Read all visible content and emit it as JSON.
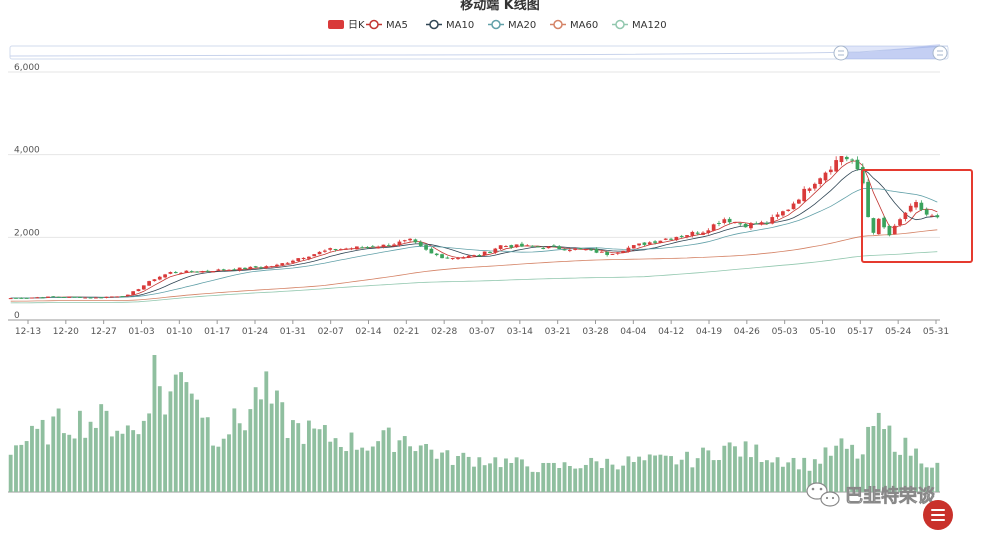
{
  "chart_data": {
    "type": "candlestick",
    "title": "移动端 K线图",
    "legend": [
      {
        "name": "日K",
        "color": "#d93a3a",
        "kind": "box"
      },
      {
        "name": "MA5",
        "color": "#c23531",
        "kind": "line"
      },
      {
        "name": "MA10",
        "color": "#2f4554",
        "kind": "line"
      },
      {
        "name": "MA20",
        "color": "#61a0a8",
        "kind": "line"
      },
      {
        "name": "MA60",
        "color": "#d48265",
        "kind": "line"
      },
      {
        "name": "MA120",
        "color": "#91c7ae",
        "kind": "line"
      }
    ],
    "y_ticks": [
      "6,000",
      "4,000",
      "2,000",
      "0"
    ],
    "ylim": [
      0,
      6000
    ],
    "x_ticks": [
      "12-13",
      "12-20",
      "12-27",
      "01-03",
      "01-10",
      "01-17",
      "01-24",
      "01-31",
      "02-07",
      "02-14",
      "02-21",
      "02-28",
      "03-07",
      "03-14",
      "03-21",
      "03-28",
      "04-04",
      "04-12",
      "04-19",
      "04-26",
      "05-03",
      "05-10",
      "05-17",
      "05-24",
      "05-31"
    ],
    "close_keyframes": [
      [
        0,
        530
      ],
      [
        8,
        560
      ],
      [
        16,
        540
      ],
      [
        22,
        600
      ],
      [
        27,
        1000
      ],
      [
        30,
        1150
      ],
      [
        36,
        1180
      ],
      [
        44,
        1250
      ],
      [
        50,
        1320
      ],
      [
        54,
        1500
      ],
      [
        60,
        1700
      ],
      [
        70,
        1800
      ],
      [
        75,
        1920
      ],
      [
        79,
        1600
      ],
      [
        82,
        1500
      ],
      [
        88,
        1560
      ],
      [
        92,
        1800
      ],
      [
        100,
        1760
      ],
      [
        108,
        1700
      ],
      [
        112,
        1600
      ],
      [
        118,
        1820
      ],
      [
        124,
        2000
      ],
      [
        130,
        2150
      ],
      [
        134,
        2450
      ],
      [
        138,
        2300
      ],
      [
        142,
        2350
      ],
      [
        146,
        2700
      ],
      [
        150,
        3250
      ],
      [
        153,
        3600
      ],
      [
        155,
        3850
      ],
      [
        156,
        3980
      ],
      [
        158,
        3850
      ],
      [
        160,
        3300
      ],
      [
        161,
        2500
      ],
      [
        162,
        2150
      ],
      [
        163,
        2400
      ],
      [
        165,
        2050
      ],
      [
        168,
        2600
      ],
      [
        170,
        2800
      ],
      [
        172,
        2550
      ],
      [
        174,
        2450
      ]
    ],
    "n_bars": 175,
    "volume_keyframes": [
      [
        0,
        260
      ],
      [
        5,
        330
      ],
      [
        10,
        410
      ],
      [
        18,
        420
      ],
      [
        24,
        340
      ],
      [
        27,
        720
      ],
      [
        29,
        520
      ],
      [
        33,
        740
      ],
      [
        38,
        330
      ],
      [
        44,
        430
      ],
      [
        47,
        610
      ],
      [
        52,
        390
      ],
      [
        58,
        330
      ],
      [
        66,
        280
      ],
      [
        74,
        320
      ],
      [
        82,
        200
      ],
      [
        90,
        190
      ],
      [
        100,
        140
      ],
      [
        110,
        170
      ],
      [
        120,
        180
      ],
      [
        128,
        190
      ],
      [
        134,
        260
      ],
      [
        140,
        230
      ],
      [
        150,
        160
      ],
      [
        156,
        260
      ],
      [
        160,
        210
      ],
      [
        162,
        400
      ],
      [
        165,
        330
      ],
      [
        168,
        260
      ],
      [
        172,
        190
      ],
      [
        174,
        150
      ]
    ],
    "volume_max": 800
  },
  "watermark": {
    "text": "巴韭特荣谈"
  },
  "menu_button": {
    "icon": "menu-icon",
    "color": "#c9312b"
  }
}
